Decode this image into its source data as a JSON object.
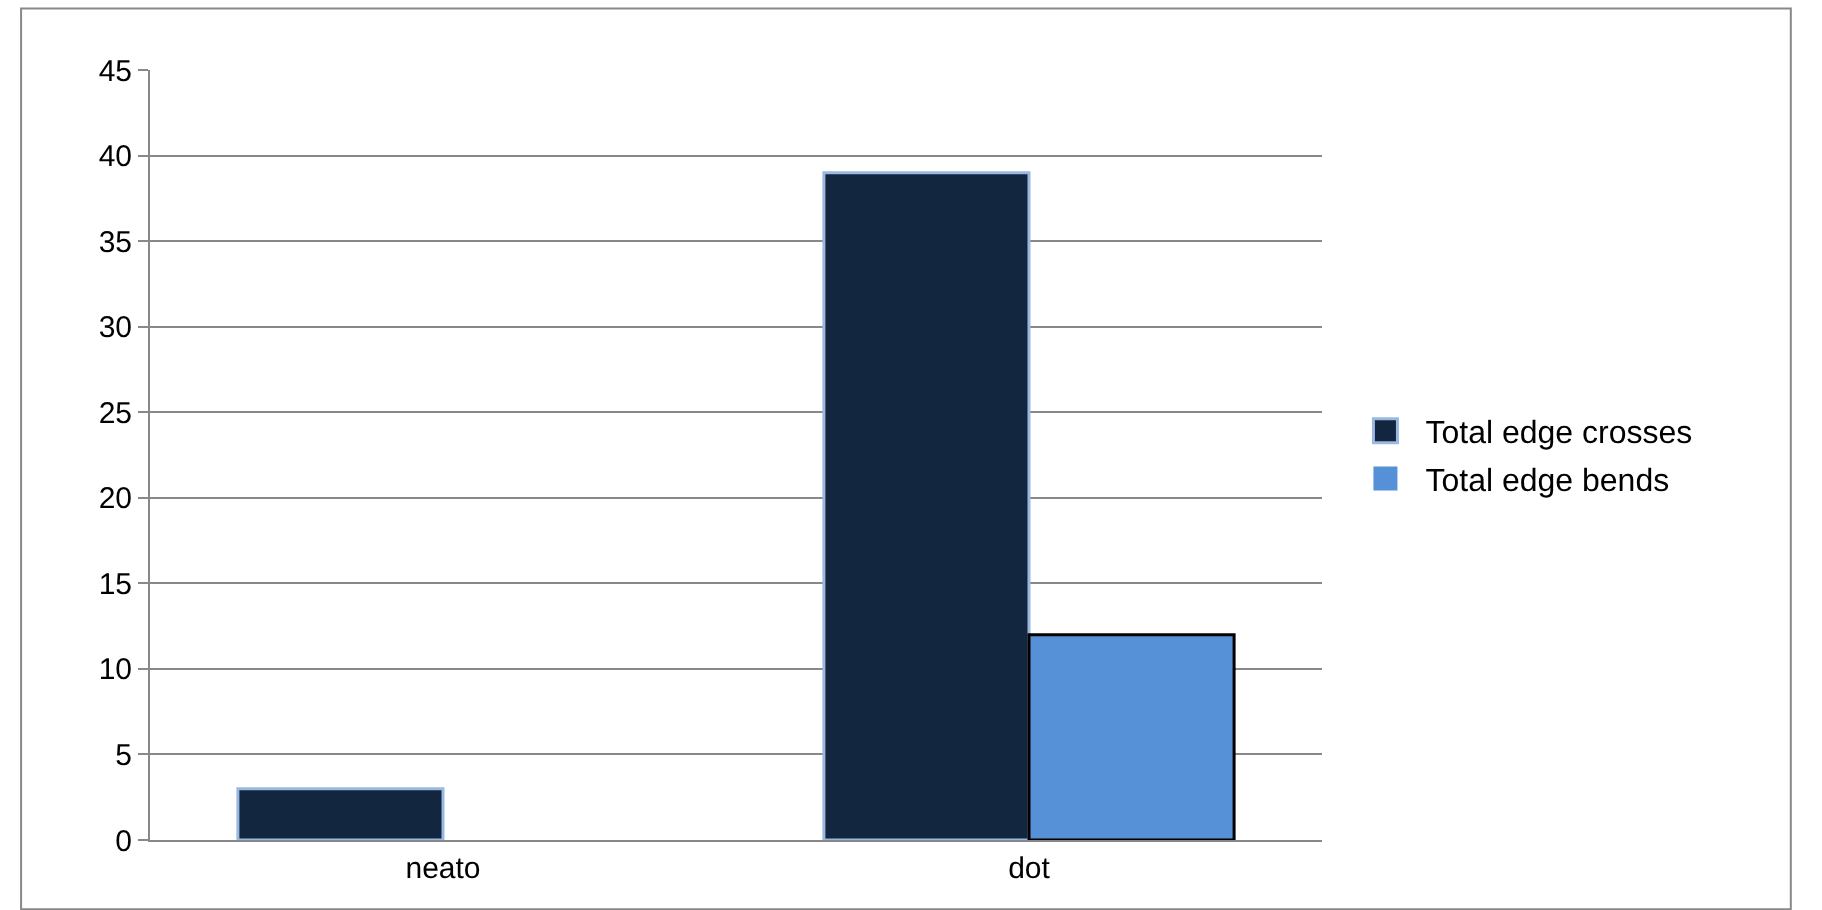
{
  "chart_data": {
    "type": "bar",
    "categories": [
      "neato",
      "dot"
    ],
    "series": [
      {
        "name": "Total edge crosses",
        "color": "#13263f",
        "values": [
          3,
          39
        ]
      },
      {
        "name": "Total edge bends",
        "color": "#5690d6",
        "values": [
          0,
          12
        ]
      }
    ],
    "ylim": [
      0,
      45
    ],
    "yticks": [
      0,
      5,
      10,
      15,
      20,
      25,
      30,
      35,
      40,
      45
    ],
    "grid": "y",
    "legend": "right"
  }
}
